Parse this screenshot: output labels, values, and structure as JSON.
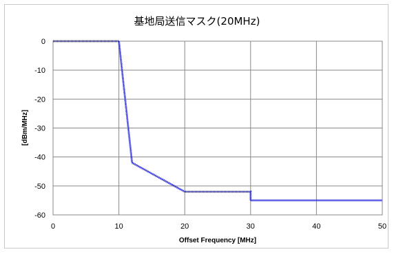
{
  "chart_data": {
    "type": "line",
    "title": "基地局送信マスク(20MHz)",
    "xlabel": "Offset Frequency [MHz]",
    "ylabel": "[dBm/MHz]",
    "xlim": [
      0,
      50
    ],
    "ylim": [
      -60,
      0
    ],
    "xticks": [
      0,
      10,
      20,
      30,
      40,
      50
    ],
    "yticks": [
      0,
      -10,
      -20,
      -30,
      -40,
      -50,
      -60
    ],
    "grid": true,
    "legend": "none",
    "series": [
      {
        "color": "#1f1fd8",
        "x": [
          0,
          10,
          12,
          20,
          30,
          30,
          50
        ],
        "y": [
          0,
          0,
          -42,
          -52,
          -52,
          -55,
          -55
        ]
      }
    ]
  }
}
